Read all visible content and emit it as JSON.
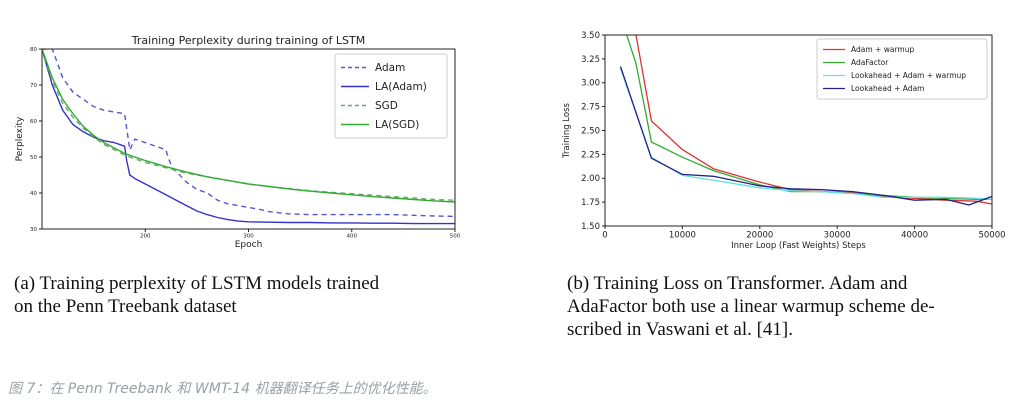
{
  "chart_data": [
    {
      "type": "line",
      "title": "Training Perplexity during training of LSTM",
      "xlabel": "Epoch",
      "ylabel": "Perplexity",
      "xlim": [
        100,
        500
      ],
      "ylim": [
        30,
        80
      ],
      "xticks": [
        200,
        300,
        400,
        500
      ],
      "yticks": [
        30,
        40,
        50,
        60,
        70,
        80
      ],
      "grid": false,
      "legend_position": "top-right",
      "series": [
        {
          "name": "Adam",
          "color": "#5555cc",
          "style": "dashed",
          "x": [
            100,
            110,
            120,
            130,
            140,
            150,
            160,
            170,
            180,
            185,
            190,
            200,
            210,
            220,
            222,
            226,
            230,
            240,
            250,
            260,
            270,
            280,
            290,
            300,
            310,
            320,
            330,
            340,
            360,
            380,
            400,
            420,
            440,
            460,
            480,
            500
          ],
          "y": [
            80,
            80,
            72,
            68,
            66,
            64,
            63,
            62.5,
            62,
            52,
            55,
            54,
            53,
            52,
            50,
            47,
            46,
            43,
            41,
            40,
            38,
            37,
            36.5,
            36,
            35.5,
            34.8,
            34.5,
            34.2,
            34,
            34,
            34,
            34,
            34,
            33.8,
            33.6,
            33.5
          ]
        },
        {
          "name": "LA(Adam)",
          "color": "#3333cc",
          "style": "solid",
          "x": [
            100,
            110,
            120,
            130,
            140,
            150,
            160,
            170,
            180,
            182,
            185,
            190,
            200,
            210,
            220,
            230,
            240,
            250,
            260,
            270,
            280,
            290,
            300,
            320,
            340,
            360,
            380,
            400,
            420,
            440,
            460,
            480,
            500
          ],
          "y": [
            80,
            70,
            63,
            59,
            57,
            55.5,
            54.5,
            54,
            53,
            49,
            45,
            44,
            42.5,
            41,
            39.5,
            38,
            36.5,
            35,
            34,
            33.2,
            32.6,
            32.2,
            32,
            31.9,
            31.8,
            31.8,
            31.7,
            31.7,
            31.6,
            31.6,
            31.5,
            31.5,
            31.5
          ]
        },
        {
          "name": "SGD",
          "color": "#66aa66",
          "style": "dashed",
          "x": [
            100,
            110,
            120,
            130,
            140,
            150,
            160,
            170,
            180,
            190,
            200,
            220,
            240,
            260,
            280,
            300,
            320,
            340,
            360,
            380,
            400,
            420,
            440,
            460,
            480,
            500
          ],
          "y": [
            80,
            71,
            65,
            61,
            58,
            55.5,
            53.5,
            52,
            50.5,
            49.5,
            48.5,
            47,
            45.5,
            44.5,
            43.5,
            42.5,
            41.8,
            41.2,
            40.6,
            40.2,
            39.8,
            39.4,
            39,
            38.6,
            38.2,
            38
          ]
        },
        {
          "name": "LA(SGD)",
          "color": "#33aa33",
          "style": "solid",
          "x": [
            100,
            110,
            120,
            130,
            140,
            150,
            160,
            170,
            180,
            190,
            200,
            220,
            240,
            260,
            280,
            300,
            320,
            340,
            360,
            380,
            400,
            420,
            440,
            460,
            480,
            500
          ],
          "y": [
            80,
            72,
            66,
            62,
            58.5,
            56,
            54,
            52.5,
            51,
            50,
            49,
            47.3,
            45.8,
            44.5,
            43.5,
            42.5,
            41.8,
            41.1,
            40.5,
            40,
            39.5,
            39,
            38.6,
            38.2,
            37.8,
            37.5
          ]
        }
      ]
    },
    {
      "type": "line",
      "title": "",
      "xlabel": "Inner Loop (Fast Weights) Steps",
      "ylabel": "Training Loss",
      "xlim": [
        0,
        50000
      ],
      "ylim": [
        1.5,
        3.5
      ],
      "xticks": [
        0,
        10000,
        20000,
        30000,
        40000,
        50000
      ],
      "yticks": [
        1.5,
        1.75,
        2.0,
        2.25,
        2.5,
        2.75,
        3.0,
        3.25,
        3.5
      ],
      "grid": false,
      "legend_position": "top-right",
      "series": [
        {
          "name": "Adam + warmup",
          "color": "#dd3333",
          "x": [
            2000,
            4000,
            6000,
            10000,
            14000,
            20000,
            24000,
            28000,
            32000,
            36000,
            40000,
            44000,
            48000,
            50000
          ],
          "y": [
            3.9,
            3.5,
            2.6,
            2.3,
            2.1,
            1.96,
            1.88,
            1.86,
            1.85,
            1.81,
            1.79,
            1.77,
            1.76,
            1.73
          ]
        },
        {
          "name": "AdaFactor",
          "color": "#33aa33",
          "x": [
            2000,
            4000,
            6000,
            10000,
            14000,
            20000,
            24000,
            28000,
            32000,
            36000,
            40000,
            44000,
            48000,
            50000
          ],
          "y": [
            3.7,
            3.2,
            2.38,
            2.22,
            2.08,
            1.93,
            1.86,
            1.86,
            1.84,
            1.82,
            1.8,
            1.79,
            1.78,
            1.78
          ]
        },
        {
          "name": "Lookahead + Adam + warmup",
          "color": "#66e0e0",
          "x": [
            2000,
            6000,
            10000,
            14000,
            20000,
            24000,
            28000,
            32000,
            36000,
            40000,
            44000,
            48000,
            50000
          ],
          "y": [
            3.15,
            2.22,
            2.03,
            1.98,
            1.9,
            1.87,
            1.86,
            1.84,
            1.8,
            1.8,
            1.8,
            1.79,
            1.78
          ]
        },
        {
          "name": "Lookahead + Adam",
          "color": "#222288",
          "x": [
            2000,
            6000,
            10000,
            14000,
            20000,
            24000,
            28000,
            32000,
            36000,
            40000,
            44000,
            47000,
            50000
          ],
          "y": [
            3.17,
            2.21,
            2.04,
            2.02,
            1.92,
            1.89,
            1.88,
            1.86,
            1.82,
            1.77,
            1.78,
            1.72,
            1.81
          ]
        }
      ]
    }
  ],
  "captions": {
    "a": [
      "(a) Training perplexity of LSTM models trained",
      "on the Penn Treebank dataset"
    ],
    "b": [
      "(b) Training Loss on Transformer.  Adam and",
      "AdaFactor both use a linear warmup scheme de-",
      "scribed in Vaswani et al. [41]."
    ]
  },
  "figure_caption": "图 7：在 Penn Treebank 和 WMT-14 机器翻译任务上的优化性能。"
}
